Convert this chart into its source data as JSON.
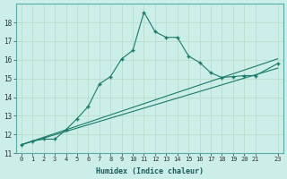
{
  "title": "",
  "xlabel": "Humidex (Indice chaleur)",
  "bg_color": "#cceee8",
  "grid_color": "#bbddcc",
  "line_color": "#1a7a6a",
  "xlim": [
    -0.5,
    23.5
  ],
  "ylim": [
    11,
    19
  ],
  "yticks": [
    11,
    12,
    13,
    14,
    15,
    16,
    17,
    18
  ],
  "xticks": [
    0,
    1,
    2,
    3,
    4,
    5,
    6,
    7,
    8,
    9,
    10,
    11,
    12,
    13,
    14,
    15,
    16,
    17,
    18,
    19,
    20,
    21,
    23
  ],
  "line1_x": [
    0,
    1,
    2,
    3,
    4,
    5,
    6,
    7,
    8,
    9,
    10,
    11,
    12,
    13,
    14,
    15,
    16,
    17,
    18,
    19,
    20,
    21,
    23
  ],
  "line1_y": [
    11.45,
    11.65,
    11.75,
    11.75,
    12.25,
    12.85,
    13.5,
    14.7,
    15.1,
    16.05,
    16.5,
    18.55,
    17.5,
    17.2,
    17.2,
    16.2,
    15.85,
    15.3,
    15.05,
    15.1,
    15.15,
    15.15,
    15.8
  ],
  "line2_x": [
    0,
    23
  ],
  "line2_y": [
    11.45,
    15.55
  ],
  "line3_x": [
    0,
    23
  ],
  "line3_y": [
    11.45,
    16.05
  ]
}
